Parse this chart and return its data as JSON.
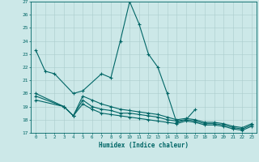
{
  "xlabel": "Humidex (Indice chaleur)",
  "bg_color": "#cce8e8",
  "line_color": "#006666",
  "grid_color": "#aacccc",
  "x_ticks": [
    0,
    1,
    2,
    3,
    4,
    5,
    6,
    7,
    8,
    9,
    10,
    11,
    12,
    13,
    14,
    15,
    16,
    17,
    18,
    19,
    20,
    21,
    22,
    23
  ],
  "ylim": [
    17,
    27
  ],
  "xlim": [
    -0.5,
    23.5
  ],
  "yticks": [
    17,
    18,
    19,
    20,
    21,
    22,
    23,
    24,
    25,
    26,
    27
  ],
  "s1_x": [
    0,
    1,
    2,
    4,
    5,
    7,
    8,
    9,
    10,
    11,
    12,
    13,
    14,
    15,
    16,
    17
  ],
  "s1_y": [
    23.3,
    21.7,
    21.5,
    20.0,
    20.2,
    21.5,
    21.2,
    24.0,
    27.0,
    25.3,
    23.0,
    22.0,
    20.0,
    17.8,
    18.0,
    18.8
  ],
  "s2_x": [
    0,
    3,
    4,
    5,
    6,
    7,
    8,
    9,
    10,
    11,
    12,
    13,
    14,
    15,
    16,
    17,
    18,
    19,
    20,
    21,
    22,
    23
  ],
  "s2_y": [
    20.0,
    19.0,
    18.3,
    19.8,
    19.5,
    19.2,
    19.0,
    18.8,
    18.7,
    18.6,
    18.5,
    18.4,
    18.2,
    18.0,
    18.1,
    18.0,
    17.8,
    17.8,
    17.7,
    17.5,
    17.4,
    17.7
  ],
  "s3_x": [
    0,
    3,
    4,
    5,
    6,
    7,
    8,
    9,
    10,
    11,
    12,
    13,
    14,
    15,
    16,
    17,
    18,
    19,
    20,
    21,
    22,
    23
  ],
  "s3_y": [
    19.8,
    19.0,
    18.3,
    19.5,
    19.0,
    18.8,
    18.7,
    18.5,
    18.5,
    18.4,
    18.3,
    18.2,
    18.0,
    17.9,
    18.0,
    17.9,
    17.7,
    17.7,
    17.6,
    17.4,
    17.3,
    17.6
  ],
  "s4_x": [
    0,
    3,
    4,
    5,
    6,
    7,
    8,
    9,
    10,
    11,
    12,
    13,
    14,
    15,
    16,
    17,
    18,
    19,
    20,
    21,
    22,
    23
  ],
  "s4_y": [
    19.5,
    19.0,
    18.3,
    19.2,
    18.8,
    18.5,
    18.4,
    18.3,
    18.2,
    18.1,
    18.0,
    17.9,
    17.8,
    17.7,
    17.9,
    17.8,
    17.6,
    17.6,
    17.5,
    17.3,
    17.2,
    17.5
  ]
}
